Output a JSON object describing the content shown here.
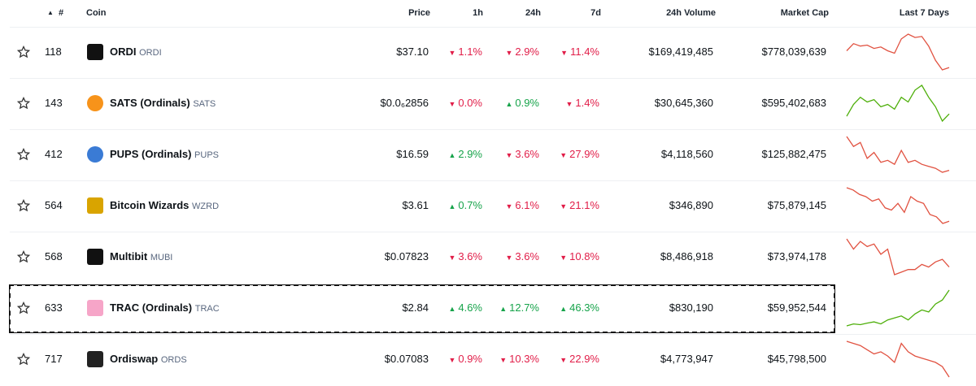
{
  "header": {
    "sort_arrow": "▲",
    "rank": "#",
    "coin": "Coin",
    "price": "Price",
    "change_1h": "1h",
    "change_24h": "24h",
    "change_7d": "7d",
    "volume": "24h Volume",
    "market_cap": "Market Cap",
    "sparkline": "Last 7 Days"
  },
  "coins": [
    {
      "rank": "118",
      "name": "ORDI",
      "symbol": "ORDI",
      "price": "$37.10",
      "change_1h": {
        "text": "1.1%",
        "direction": "down"
      },
      "change_24h": {
        "text": "2.9%",
        "direction": "down"
      },
      "change_7d": {
        "text": "11.4%",
        "direction": "down"
      },
      "volume": "$169,419,485",
      "market_cap": "$778,039,639",
      "sparkline_color": "#e15241",
      "sparkline": [
        60,
        75,
        70,
        72,
        65,
        68,
        60,
        55,
        85,
        95,
        88,
        90,
        70,
        40,
        20,
        25
      ]
    },
    {
      "rank": "143",
      "name": "SATS (Ordinals)",
      "symbol": "SATS",
      "price": "$0.0₆2856",
      "change_1h": {
        "text": "0.0%",
        "direction": "down"
      },
      "change_24h": {
        "text": "0.9%",
        "direction": "up"
      },
      "change_7d": {
        "text": "1.4%",
        "direction": "down"
      },
      "volume": "$30,645,360",
      "market_cap": "$595,402,683",
      "sparkline_color": "#4eaf0a",
      "sparkline": [
        30,
        55,
        70,
        60,
        65,
        50,
        55,
        45,
        70,
        60,
        85,
        95,
        70,
        50,
        20,
        35
      ]
    },
    {
      "rank": "412",
      "name": "PUPS (Ordinals)",
      "symbol": "PUPS",
      "price": "$16.59",
      "change_1h": {
        "text": "2.9%",
        "direction": "up"
      },
      "change_24h": {
        "text": "3.6%",
        "direction": "down"
      },
      "change_7d": {
        "text": "27.9%",
        "direction": "down"
      },
      "volume": "$4,118,560",
      "market_cap": "$125,882,475",
      "sparkline_color": "#e15241",
      "sparkline": [
        95,
        70,
        80,
        40,
        55,
        30,
        35,
        25,
        60,
        30,
        35,
        25,
        20,
        15,
        5,
        10
      ]
    },
    {
      "rank": "564",
      "name": "Bitcoin Wizards",
      "symbol": "WZRD",
      "price": "$3.61",
      "change_1h": {
        "text": "0.7%",
        "direction": "up"
      },
      "change_24h": {
        "text": "6.1%",
        "direction": "down"
      },
      "change_7d": {
        "text": "21.1%",
        "direction": "down"
      },
      "volume": "$346,890",
      "market_cap": "$75,879,145",
      "sparkline_color": "#e15241",
      "sparkline": [
        90,
        85,
        75,
        70,
        60,
        65,
        45,
        40,
        55,
        35,
        70,
        60,
        55,
        30,
        25,
        10,
        15
      ]
    },
    {
      "rank": "568",
      "name": "Multibit",
      "symbol": "MUBI",
      "price": "$0.07823",
      "change_1h": {
        "text": "3.6%",
        "direction": "down"
      },
      "change_24h": {
        "text": "3.6%",
        "direction": "down"
      },
      "change_7d": {
        "text": "10.8%",
        "direction": "down"
      },
      "volume": "$8,486,918",
      "market_cap": "$73,974,178",
      "sparkline_color": "#e15241",
      "sparkline": [
        90,
        70,
        85,
        75,
        80,
        60,
        70,
        20,
        25,
        30,
        30,
        40,
        35,
        45,
        50,
        35
      ]
    },
    {
      "rank": "633",
      "name": "TRAC (Ordinals)",
      "symbol": "TRAC",
      "price": "$2.84",
      "change_1h": {
        "text": "4.6%",
        "direction": "up"
      },
      "change_24h": {
        "text": "12.7%",
        "direction": "up"
      },
      "change_7d": {
        "text": "46.3%",
        "direction": "up"
      },
      "volume": "$830,190",
      "market_cap": "$59,952,544",
      "sparkline_color": "#4eaf0a",
      "selected": true,
      "sparkline": [
        5,
        10,
        8,
        12,
        15,
        10,
        20,
        25,
        30,
        20,
        35,
        45,
        40,
        60,
        70,
        95
      ]
    },
    {
      "rank": "717",
      "name": "Ordiswap",
      "symbol": "ORDS",
      "price": "$0.07083",
      "change_1h": {
        "text": "0.9%",
        "direction": "down"
      },
      "change_24h": {
        "text": "10.3%",
        "direction": "down"
      },
      "change_7d": {
        "text": "22.9%",
        "direction": "down"
      },
      "volume": "$4,773,947",
      "market_cap": "$45,798,500",
      "sparkline_color": "#e15241",
      "sparkline": [
        90,
        85,
        80,
        70,
        60,
        65,
        55,
        40,
        85,
        65,
        55,
        50,
        45,
        40,
        30,
        5
      ]
    }
  ]
}
